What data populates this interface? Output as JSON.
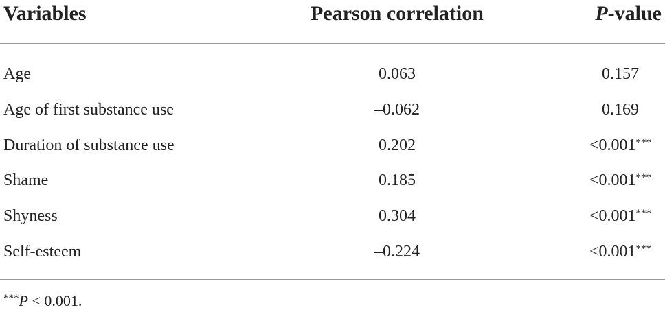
{
  "header": [
    "Variables",
    "Pearson correlation",
    "P-value"
  ],
  "rows": [
    {
      "variable": "Age",
      "r": "0.063",
      "p": "0.157",
      "sig": null
    },
    {
      "variable": "Age of first substance use",
      "r": "–0.062",
      "p": "0.169",
      "sig": null
    },
    {
      "variable": "Duration of substance use",
      "r": "0.202",
      "p": "<0.001",
      "sig": "***"
    },
    {
      "variable": "Shame",
      "r": "0.185",
      "p": "<0.001",
      "sig": "***"
    },
    {
      "variable": "Shyness",
      "r": "0.304",
      "p": "<0.001",
      "sig": "***"
    },
    {
      "variable": "Self-esteem",
      "r": "–0.224",
      "p": "<0.001",
      "sig": "***"
    }
  ],
  "footnote": {
    "mark": "***",
    "text": "P < 0.001."
  }
}
